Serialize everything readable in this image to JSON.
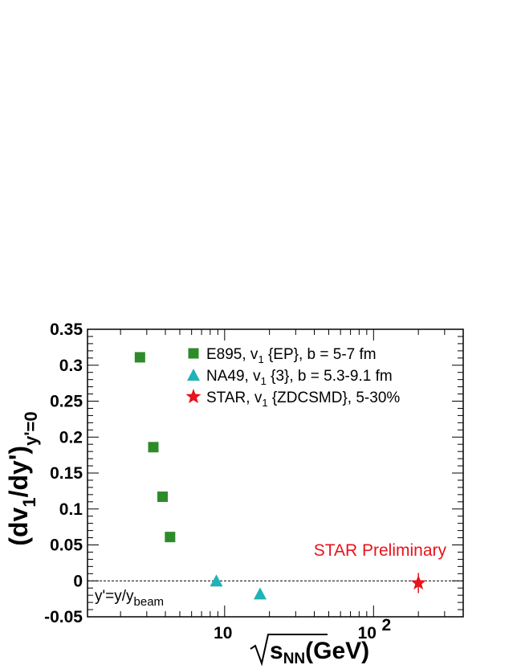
{
  "chart_data": {
    "type": "scatter",
    "x_scale": "log",
    "xlim": [
      1.2,
      400
    ],
    "ylim": [
      -0.05,
      0.35
    ],
    "x_tick_labels": [
      "10",
      "10"
    ],
    "x_tick_exponent": "2",
    "y_tick_labels": [
      "-0.05",
      "0",
      "0.05",
      "0.1",
      "0.15",
      "0.2",
      "0.25",
      "0.3",
      "0.35"
    ],
    "xlabel": {
      "root": "s",
      "sub": "NN",
      "unit": "(GeV)"
    },
    "ylabel": {
      "main": "(dv",
      "sub1": "1",
      "mid": "/dy')",
      "sub2": "y'=0"
    },
    "zero_line": true,
    "grid": false,
    "legend_position": "top-right",
    "series": [
      {
        "name": "E895, v",
        "name_sub": "1",
        "name_rest": " {EP}, b = 5-7 fm",
        "marker": "square",
        "color": "#2e8b2a",
        "points": [
          {
            "x": 2.7,
            "y": 0.311
          },
          {
            "x": 3.32,
            "y": 0.186
          },
          {
            "x": 3.83,
            "y": 0.117
          },
          {
            "x": 4.3,
            "y": 0.061
          }
        ]
      },
      {
        "name": "NA49, v",
        "name_sub": "1",
        "name_rest": " {3}, b = 5.3-9.1 fm",
        "marker": "triangle",
        "color": "#1fb3b8",
        "points": [
          {
            "x": 8.8,
            "y": 0.0
          },
          {
            "x": 17.3,
            "y": -0.018
          }
        ]
      },
      {
        "name": "STAR, v",
        "name_sub": "1",
        "name_rest": " {ZDCSMD}, 5-30%",
        "marker": "star",
        "color": "#e8131b",
        "points": [
          {
            "x": 200,
            "y": -0.003,
            "err": 0.014
          }
        ]
      }
    ],
    "annotations": {
      "preliminary": "STAR Preliminary",
      "preliminary_color": "#e8131b",
      "ydef_main": "y'=y/y",
      "ydef_sub": "beam"
    }
  }
}
